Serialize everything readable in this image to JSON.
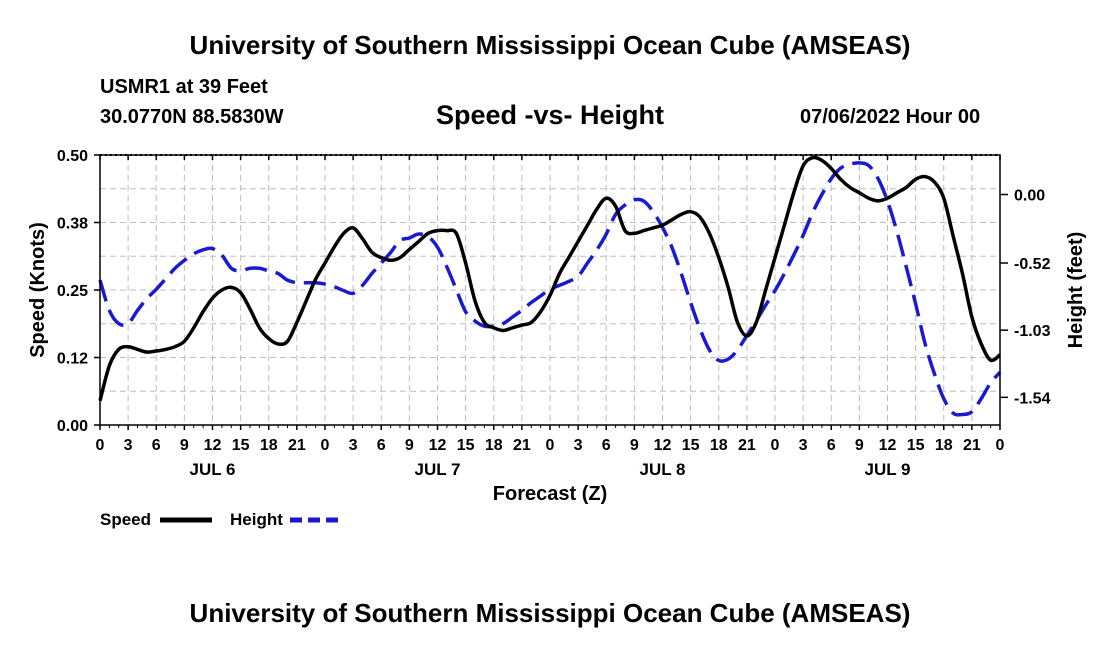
{
  "header": {
    "title": "University of Southern Mississippi Ocean Cube (AMSEAS)",
    "station": "USMR1 at 39 Feet",
    "coords": "30.0770N  88.5830W",
    "chart_title": "Speed -vs- Height",
    "date": "07/06/2022 Hour 00"
  },
  "footer": {
    "title": "University of Southern Mississippi Ocean Cube (AMSEAS)"
  },
  "colors": {
    "speed": "#000000",
    "height": "#1a1ad0",
    "grid": "#bdbdbd"
  },
  "chart_data": {
    "type": "line",
    "title": "Speed -vs- Height",
    "xlabel": "Forecast (Z)",
    "ylabel": "Speed (Knots)",
    "y2label": "Height (feet)",
    "grid": true,
    "legend": "bottom-left",
    "xlim": [
      0,
      96
    ],
    "ylim": [
      0,
      0.5
    ],
    "y2lim": [
      -1.75,
      0.3
    ],
    "yticks": [
      "0.00",
      "0.12",
      "0.25",
      "0.38",
      "0.50"
    ],
    "ytick_values": [
      0,
      0.125,
      0.25,
      0.375,
      0.5
    ],
    "y2ticks": [
      "-1.54",
      "-1.03",
      "-0.52",
      "0.00"
    ],
    "y2tick_values": [
      -1.54,
      -1.03,
      -0.52,
      0.0
    ],
    "xtick_labels": [
      "0",
      "3",
      "6",
      "9",
      "12",
      "15",
      "18",
      "21",
      "0",
      "3",
      "6",
      "9",
      "12",
      "15",
      "18",
      "21",
      "0",
      "3",
      "6",
      "9",
      "12",
      "15",
      "18",
      "21",
      "0",
      "3",
      "6",
      "9",
      "12",
      "15",
      "18",
      "21",
      "0"
    ],
    "day_labels": [
      {
        "hour": 12,
        "label": "JUL 6"
      },
      {
        "hour": 36,
        "label": "JUL 7"
      },
      {
        "hour": 60,
        "label": "JUL 8"
      },
      {
        "hour": 84,
        "label": "JUL 9"
      }
    ],
    "series": [
      {
        "name": "Speed",
        "axis": "left",
        "style": "solid",
        "x": [
          0,
          1,
          2,
          3,
          4,
          5,
          6,
          7,
          8,
          9,
          10,
          11,
          12,
          13,
          14,
          15,
          16,
          17,
          18,
          19,
          20,
          21,
          22,
          23,
          24,
          25,
          26,
          27,
          28,
          29,
          30,
          31,
          32,
          33,
          34,
          35,
          36,
          37,
          38,
          39,
          40,
          41,
          42,
          43,
          44,
          45,
          46,
          47,
          48,
          49,
          50,
          51,
          52,
          53,
          54,
          55,
          56,
          57,
          58,
          59,
          60,
          61,
          62,
          63,
          64,
          65,
          66,
          67,
          68,
          69,
          70,
          71,
          72,
          73,
          74,
          75,
          76,
          77,
          78,
          79,
          80,
          81,
          82,
          83,
          84,
          85,
          86,
          87,
          88,
          89,
          90,
          91,
          92,
          93,
          94,
          95,
          96
        ],
        "values": [
          0.045,
          0.11,
          0.14,
          0.145,
          0.14,
          0.135,
          0.137,
          0.14,
          0.145,
          0.155,
          0.18,
          0.21,
          0.235,
          0.25,
          0.255,
          0.245,
          0.215,
          0.18,
          0.16,
          0.15,
          0.155,
          0.19,
          0.23,
          0.27,
          0.3,
          0.33,
          0.355,
          0.365,
          0.345,
          0.32,
          0.31,
          0.305,
          0.31,
          0.325,
          0.34,
          0.355,
          0.36,
          0.36,
          0.355,
          0.3,
          0.23,
          0.19,
          0.18,
          0.175,
          0.18,
          0.185,
          0.19,
          0.21,
          0.24,
          0.28,
          0.31,
          0.34,
          0.37,
          0.4,
          0.42,
          0.405,
          0.36,
          0.355,
          0.36,
          0.365,
          0.37,
          0.38,
          0.39,
          0.395,
          0.385,
          0.355,
          0.31,
          0.255,
          0.19,
          0.165,
          0.19,
          0.25,
          0.31,
          0.37,
          0.43,
          0.48,
          0.495,
          0.49,
          0.475,
          0.455,
          0.44,
          0.43,
          0.42,
          0.415,
          0.42,
          0.43,
          0.44,
          0.455,
          0.46,
          0.45,
          0.42,
          0.35,
          0.28,
          0.2,
          0.15,
          0.12,
          0.13
        ]
      },
      {
        "name": "Height",
        "axis": "right",
        "style": "dashed",
        "x": [
          0,
          1,
          2,
          3,
          4,
          5,
          6,
          7,
          8,
          9,
          10,
          11,
          12,
          13,
          14,
          15,
          16,
          17,
          18,
          19,
          20,
          21,
          22,
          23,
          24,
          25,
          26,
          27,
          28,
          29,
          30,
          31,
          32,
          33,
          34,
          35,
          36,
          37,
          38,
          39,
          40,
          41,
          42,
          43,
          44,
          45,
          46,
          47,
          48,
          49,
          50,
          51,
          52,
          53,
          54,
          55,
          56,
          57,
          58,
          59,
          60,
          61,
          62,
          63,
          64,
          65,
          66,
          67,
          68,
          69,
          70,
          71,
          72,
          73,
          74,
          75,
          76,
          77,
          78,
          79,
          80,
          81,
          82,
          83,
          84,
          85,
          86,
          87,
          88,
          89,
          90,
          91,
          92,
          93,
          94,
          95,
          96
        ],
        "values": [
          -0.65,
          -0.88,
          -0.98,
          -0.98,
          -0.88,
          -0.79,
          -0.72,
          -0.64,
          -0.56,
          -0.5,
          -0.45,
          -0.42,
          -0.41,
          -0.46,
          -0.56,
          -0.58,
          -0.56,
          -0.56,
          -0.58,
          -0.6,
          -0.65,
          -0.67,
          -0.67,
          -0.67,
          -0.68,
          -0.7,
          -0.73,
          -0.75,
          -0.69,
          -0.6,
          -0.52,
          -0.44,
          -0.35,
          -0.33,
          -0.3,
          -0.32,
          -0.4,
          -0.55,
          -0.72,
          -0.89,
          -0.96,
          -1.0,
          -1.0,
          -0.98,
          -0.93,
          -0.88,
          -0.82,
          -0.77,
          -0.72,
          -0.69,
          -0.66,
          -0.62,
          -0.52,
          -0.42,
          -0.3,
          -0.15,
          -0.08,
          -0.04,
          -0.05,
          -0.13,
          -0.25,
          -0.4,
          -0.6,
          -0.82,
          -1.02,
          -1.18,
          -1.26,
          -1.25,
          -1.18,
          -1.07,
          -0.96,
          -0.84,
          -0.73,
          -0.6,
          -0.46,
          -0.31,
          -0.14,
          0.0,
          0.12,
          0.2,
          0.23,
          0.24,
          0.22,
          0.12,
          -0.05,
          -0.28,
          -0.55,
          -0.83,
          -1.13,
          -1.36,
          -1.55,
          -1.66,
          -1.67,
          -1.65,
          -1.55,
          -1.43,
          -1.35
        ]
      }
    ]
  }
}
